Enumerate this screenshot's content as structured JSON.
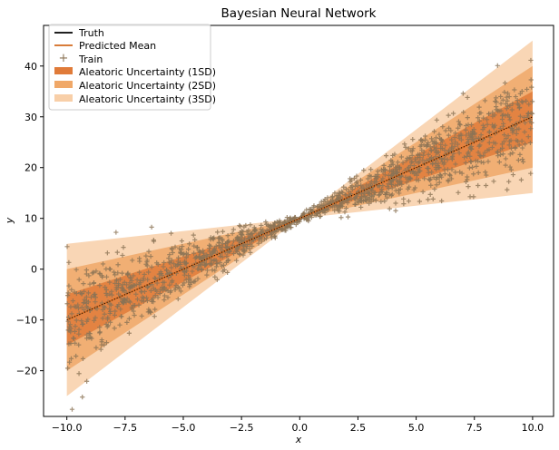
{
  "chart_data": {
    "type": "line",
    "title": "Bayesian Neural Network",
    "xlabel": "x",
    "ylabel": "y",
    "xlim": [
      -11,
      10.9
    ],
    "ylim": [
      -29,
      48
    ],
    "xticks": [
      -10.0,
      -7.5,
      -5.0,
      -2.5,
      0.0,
      2.5,
      5.0,
      7.5,
      10.0
    ],
    "xtick_labels": [
      "−10.0",
      "−7.5",
      "−5.0",
      "−2.5",
      "0.0",
      "2.5",
      "5.0",
      "7.5",
      "10.0"
    ],
    "yticks": [
      -20,
      -10,
      0,
      10,
      20,
      30,
      40
    ],
    "ytick_labels": [
      "−20",
      "−10",
      "0",
      "10",
      "20",
      "30",
      "40"
    ],
    "grid": false,
    "legend_position": "top-left",
    "series": [
      {
        "name": "Truth",
        "kind": "line",
        "color": "#000000",
        "x": [
          -10,
          10
        ],
        "y": [
          -10,
          30
        ]
      },
      {
        "name": "Predicted Mean",
        "kind": "line",
        "color": "#d2691e",
        "x": [
          -10,
          10
        ],
        "y": [
          -10,
          30
        ]
      },
      {
        "name": "Train",
        "kind": "scatter",
        "marker": "+",
        "color": "#8b7355",
        "x_range": [
          -10,
          10
        ],
        "noise_sd_at_x0": 0.3,
        "noise_sd_per_unit_x": 0.5
      },
      {
        "name": "Aleatoric Uncertainty (1SD)",
        "kind": "band",
        "color": "#e07b39",
        "x": [
          -10,
          0,
          10
        ],
        "lower": [
          -15,
          10,
          25
        ],
        "upper": [
          -5,
          10,
          35
        ]
      },
      {
        "name": "Aleatoric Uncertainty (2SD)",
        "kind": "band",
        "color": "#f0a868",
        "x": [
          -10,
          0,
          10
        ],
        "lower": [
          -20,
          10,
          20
        ],
        "upper": [
          0,
          10,
          40
        ]
      },
      {
        "name": "Aleatoric Uncertainty (3SD)",
        "kind": "band",
        "color": "#f8cfa8",
        "x": [
          -10,
          0,
          10
        ],
        "lower": [
          -25,
          10,
          15
        ],
        "upper": [
          5,
          10,
          45
        ]
      }
    ]
  }
}
